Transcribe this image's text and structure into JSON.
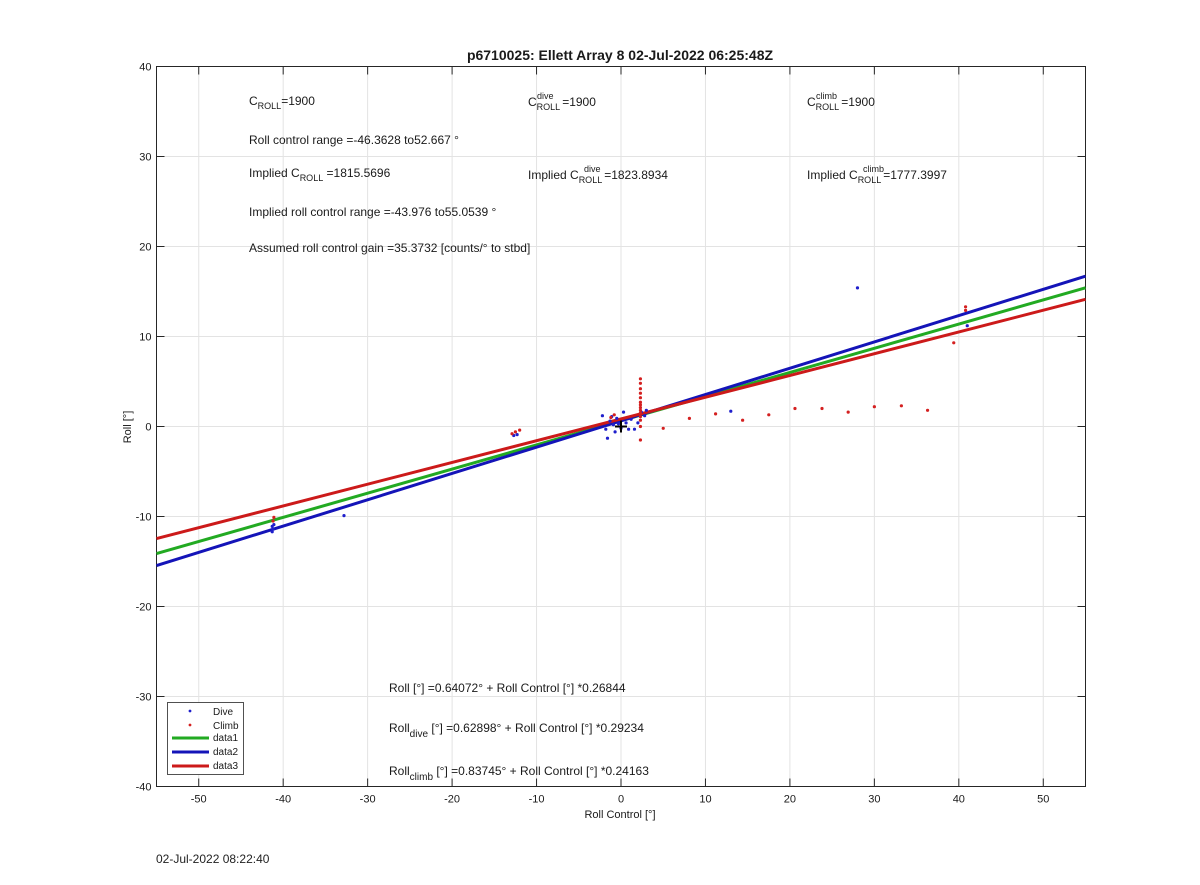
{
  "chart_data": {
    "type": "scatter",
    "title": "p6710025: Ellett Array 8 02-Jul-2022 06:25:48Z",
    "xlabel": "Roll Control [°]",
    "ylabel": "Roll [°]",
    "xlim": [
      -55,
      55
    ],
    "ylim": [
      -40,
      40
    ],
    "xticks": [
      -50,
      -40,
      -30,
      -20,
      -10,
      0,
      10,
      20,
      30,
      40,
      50
    ],
    "yticks": [
      -40,
      -30,
      -20,
      -10,
      0,
      10,
      20,
      30,
      40
    ],
    "grid": true,
    "legend_placement": "bottom-left",
    "series": [
      {
        "name": "Dive",
        "kind": "points",
        "color": "#1f1fcc",
        "points": [
          [
            -41.3,
            -11.7
          ],
          [
            -41.2,
            -11.4
          ],
          [
            -41.3,
            -11.1
          ],
          [
            -41.1,
            -10.9
          ],
          [
            -32.8,
            -9.9
          ],
          [
            -12.7,
            -1.0
          ],
          [
            -12.3,
            -0.9
          ],
          [
            -2.2,
            1.2
          ],
          [
            -1.8,
            -0.3
          ],
          [
            -1.6,
            -1.3
          ],
          [
            -1.3,
            0.6
          ],
          [
            -1.1,
            1.1
          ],
          [
            -0.9,
            0.2
          ],
          [
            -0.7,
            -0.6
          ],
          [
            -0.5,
            0.9
          ],
          [
            -0.3,
            0.3
          ],
          [
            0,
            -0.2
          ],
          [
            0.3,
            1.6
          ],
          [
            0.6,
            0.4
          ],
          [
            0.9,
            -0.3
          ],
          [
            1.2,
            0.8
          ],
          [
            1.6,
            -0.3
          ],
          [
            2.0,
            0.4
          ],
          [
            2.4,
            1.6
          ],
          [
            2.8,
            1.2
          ],
          [
            3.0,
            1.8
          ],
          [
            13.0,
            1.7
          ],
          [
            28.0,
            15.4
          ],
          [
            41.0,
            11.2
          ]
        ]
      },
      {
        "name": "Climb",
        "kind": "points",
        "color": "#d42020",
        "points": [
          [
            -41.2,
            -10.5
          ],
          [
            -41.1,
            -10.1
          ],
          [
            -12.9,
            -0.8
          ],
          [
            -12.5,
            -0.6
          ],
          [
            -12.0,
            -0.4
          ],
          [
            -1.2,
            1.0
          ],
          [
            -0.8,
            1.3
          ],
          [
            2.3,
            -1.5
          ],
          [
            2.3,
            0.0
          ],
          [
            2.3,
            0.7
          ],
          [
            2.3,
            1.1
          ],
          [
            2.3,
            1.5
          ],
          [
            2.3,
            1.8
          ],
          [
            2.3,
            2.1
          ],
          [
            2.3,
            2.4
          ],
          [
            2.3,
            2.7
          ],
          [
            2.3,
            3.2
          ],
          [
            2.3,
            3.7
          ],
          [
            2.3,
            4.2
          ],
          [
            2.3,
            4.8
          ],
          [
            2.3,
            5.3
          ],
          [
            5.0,
            -0.2
          ],
          [
            8.1,
            0.9
          ],
          [
            11.2,
            1.4
          ],
          [
            14.4,
            0.7
          ],
          [
            17.5,
            1.3
          ],
          [
            20.6,
            2.0
          ],
          [
            23.8,
            2.0
          ],
          [
            26.9,
            1.6
          ],
          [
            30.0,
            2.2
          ],
          [
            33.2,
            2.3
          ],
          [
            36.3,
            1.8
          ],
          [
            39.4,
            9.3
          ],
          [
            40.8,
            12.9
          ],
          [
            40.8,
            13.3
          ]
        ]
      },
      {
        "name": "data1",
        "kind": "line",
        "color": "#22aa22",
        "intercept": 0.64072,
        "slope": 0.26844
      },
      {
        "name": "data2",
        "kind": "line",
        "color": "#1414b8",
        "intercept": 0.62898,
        "slope": 0.29234
      },
      {
        "name": "data3",
        "kind": "line",
        "color": "#cc1a1a",
        "intercept": 0.83745,
        "slope": 0.24163
      }
    ],
    "annotations": {
      "croll": {
        "base": "C",
        "sub": "ROLL",
        "value": "=1900"
      },
      "croll_dive": {
        "base": "C",
        "sub": "ROLL",
        "sup": "dive",
        "value": "=1900"
      },
      "croll_climb": {
        "base": "C",
        "sub": "ROLL",
        "sup": "climb",
        "value": "=1900"
      },
      "roll_range": "Roll control range =-46.3628 to52.667 °",
      "implied_croll": {
        "prefix": "Implied C",
        "sub": "ROLL",
        "value": " =1815.5696"
      },
      "implied_croll_dive": {
        "prefix": "Implied C",
        "sub": "ROLL",
        "sup": "dive",
        "value": "=1823.8934"
      },
      "implied_croll_climb": {
        "prefix": "Implied C",
        "sub": "ROLL",
        "sup": "climb",
        "value": "=1777.3997"
      },
      "implied_range": "Implied roll control range =-43.976 to55.0539 °",
      "gain": "Assumed roll control gain =35.3732 [counts/° to stbd]",
      "fit_all": "Roll [°] =0.64072° + Roll Control [°] *0.26844",
      "fit_dive": {
        "base": "Roll",
        "sub": "dive",
        "rest": " [°] =0.62898° + Roll Control [°] *0.29234"
      },
      "fit_climb": {
        "base": "Roll",
        "sub": "climb",
        "rest": " [°] =0.83745° + Roll Control [°] *0.24163"
      }
    },
    "center_marker": {
      "x": 0,
      "y": 0
    }
  },
  "footer_timestamp": "02-Jul-2022 08:22:40"
}
